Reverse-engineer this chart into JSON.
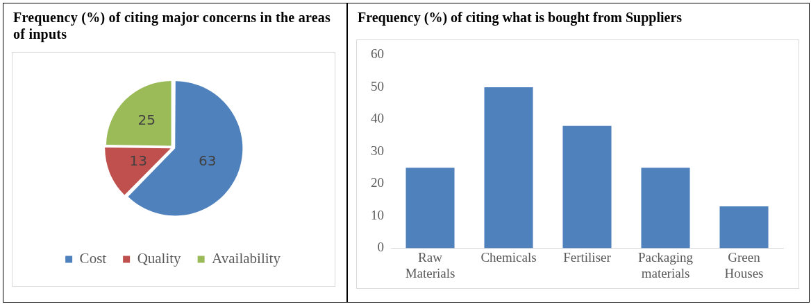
{
  "chart_data": [
    {
      "type": "pie",
      "title": "Frequency (%) of citing major concerns in the areas of inputs",
      "categories": [
        "Cost",
        "Quality",
        "Availability"
      ],
      "values": [
        63,
        13,
        25
      ],
      "colors": [
        "#4f81bd",
        "#c0504d",
        "#9bbb59"
      ],
      "data_labels": true,
      "legend": "bottom"
    },
    {
      "type": "bar",
      "title": "Frequency (%) of citing what is bought from Suppliers",
      "categories": [
        "Raw Materials",
        "Chemicals",
        "Fertiliser",
        "Packaging materials",
        "Green Houses"
      ],
      "values": [
        25,
        50,
        38,
        25,
        13
      ],
      "color": "#4f81bd",
      "ylim": [
        0,
        60
      ],
      "yticks": [
        0,
        10,
        20,
        30,
        40,
        50,
        60
      ],
      "grid": false,
      "legend": false
    }
  ]
}
